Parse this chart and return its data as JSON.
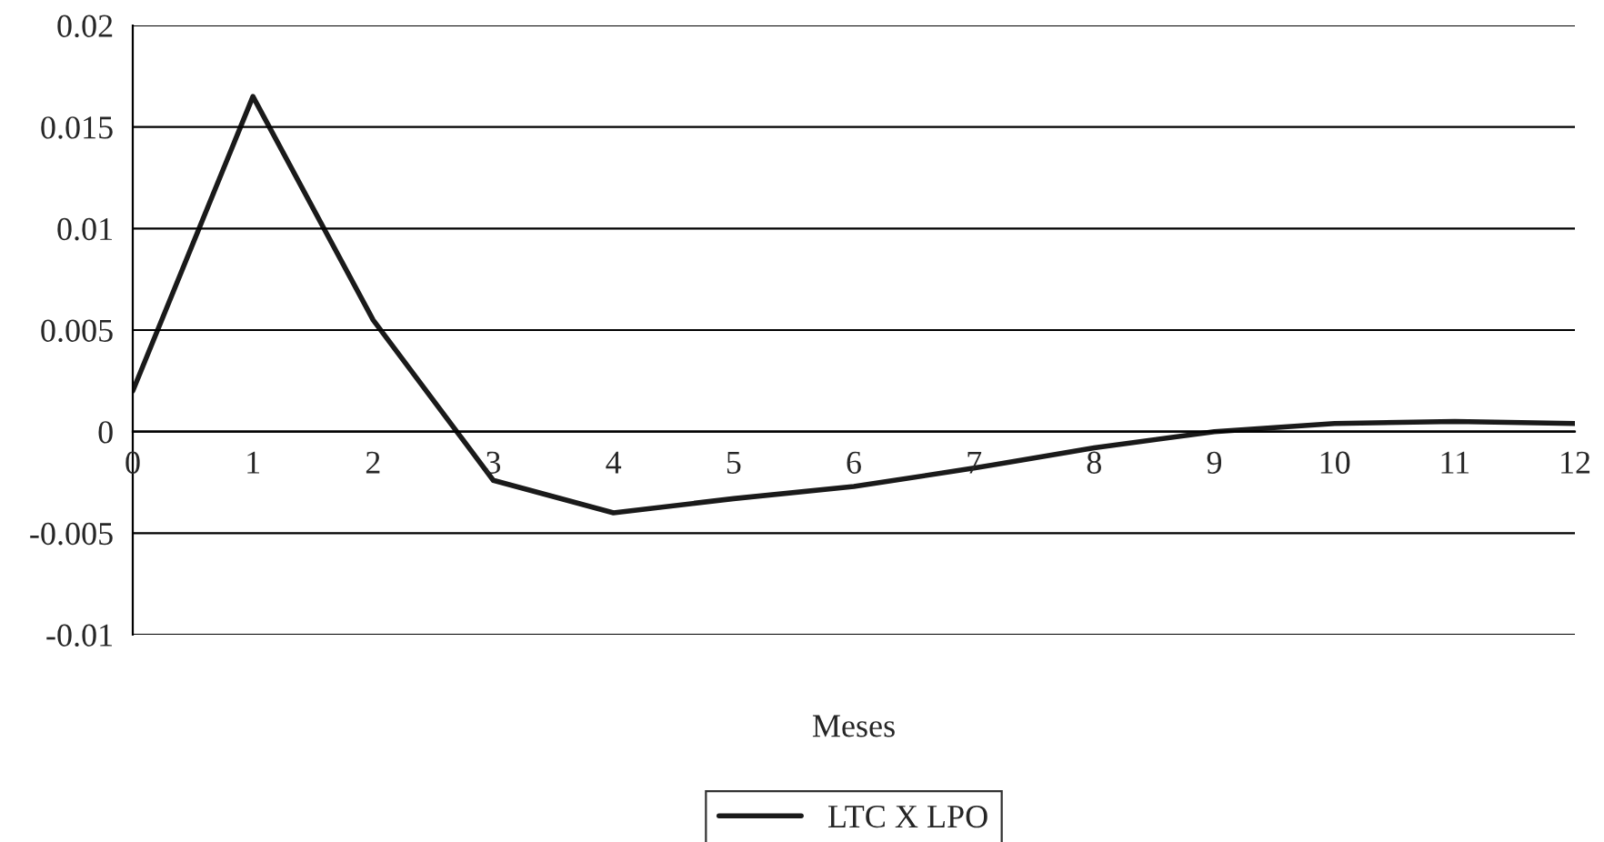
{
  "chart_data": {
    "type": "line",
    "xlabel": "Meses",
    "x": [
      0,
      1,
      2,
      3,
      4,
      5,
      6,
      7,
      8,
      9,
      10,
      11,
      12
    ],
    "series": [
      {
        "name": "LTC X LPO",
        "color": "#1a1a1a",
        "values": [
          0.002,
          0.0165,
          0.0055,
          -0.0024,
          -0.004,
          -0.0033,
          -0.0027,
          -0.0018,
          -0.0008,
          0.0,
          0.0004,
          0.0005,
          0.0004
        ]
      }
    ],
    "xlim": [
      0,
      12
    ],
    "xticks": [
      0,
      1,
      2,
      3,
      4,
      5,
      6,
      7,
      8,
      9,
      10,
      11,
      12
    ],
    "ylim": [
      -0.01,
      0.02
    ],
    "yticks": [
      {
        "value": -0.01,
        "label": "-0.01"
      },
      {
        "value": -0.005,
        "label": "-0.005"
      },
      0,
      {
        "value": 0.005,
        "label": "0.005"
      },
      {
        "value": 0.01,
        "label": "0.01"
      },
      {
        "value": 0.015,
        "label": "0.015"
      },
      {
        "value": 0.02,
        "label": "0.02"
      }
    ],
    "grid": "y",
    "legend": "bottom",
    "marker": "none",
    "line_style": "solid"
  }
}
